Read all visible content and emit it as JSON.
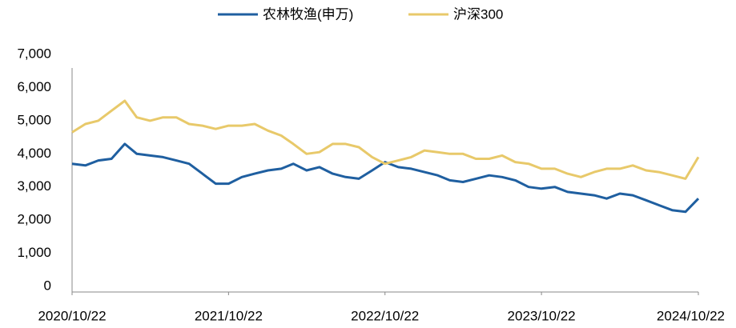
{
  "chart_data": {
    "type": "line",
    "x": [
      "2020/10/22",
      "2020/11/22",
      "2020/12/22",
      "2021/01/22",
      "2021/02/22",
      "2021/03/22",
      "2021/04/22",
      "2021/05/22",
      "2021/06/22",
      "2021/07/22",
      "2021/08/22",
      "2021/09/22",
      "2021/10/22",
      "2021/11/22",
      "2021/12/22",
      "2022/01/22",
      "2022/02/22",
      "2022/03/22",
      "2022/04/22",
      "2022/05/22",
      "2022/06/22",
      "2022/07/22",
      "2022/08/22",
      "2022/09/22",
      "2022/10/22",
      "2022/11/22",
      "2022/12/22",
      "2023/01/22",
      "2023/02/22",
      "2023/03/22",
      "2023/04/22",
      "2023/05/22",
      "2023/06/22",
      "2023/07/22",
      "2023/08/22",
      "2023/09/22",
      "2023/10/22",
      "2023/11/22",
      "2023/12/22",
      "2024/01/22",
      "2024/02/22",
      "2024/03/22",
      "2024/04/22",
      "2024/05/22",
      "2024/06/22",
      "2024/07/22",
      "2024/08/22",
      "2024/09/22",
      "2024/10/22"
    ],
    "series": [
      {
        "name": "农林牧渔(申万)",
        "color": "#1f5fa0",
        "values": [
          3700,
          3650,
          3800,
          3850,
          4300,
          4000,
          3950,
          3900,
          3800,
          3700,
          3400,
          3100,
          3100,
          3300,
          3400,
          3500,
          3550,
          3700,
          3500,
          3600,
          3400,
          3300,
          3250,
          3500,
          3750,
          3600,
          3550,
          3450,
          3350,
          3200,
          3150,
          3250,
          3350,
          3300,
          3200,
          3000,
          2950,
          3000,
          2850,
          2800,
          2750,
          2650,
          2800,
          2750,
          2600,
          2450,
          2300,
          2250,
          2650
        ]
      },
      {
        "name": "沪深300",
        "color": "#e8c96a",
        "values": [
          4650,
          4900,
          5000,
          5300,
          5600,
          5100,
          5000,
          5100,
          5100,
          4900,
          4850,
          4750,
          4850,
          4850,
          4900,
          4700,
          4550,
          4300,
          4000,
          4050,
          4300,
          4300,
          4200,
          3900,
          3700,
          3800,
          3900,
          4100,
          4050,
          4000,
          4000,
          3850,
          3850,
          3950,
          3750,
          3700,
          3550,
          3550,
          3400,
          3300,
          3450,
          3550,
          3550,
          3650,
          3500,
          3450,
          3350,
          3250,
          3900
        ]
      }
    ],
    "ylim": [
      0,
      7000
    ],
    "yticks": [
      0,
      {
        "value": 1000,
        "label": "1,000"
      },
      {
        "value": 2000,
        "label": "2,000"
      },
      {
        "value": 3000,
        "label": "3,000"
      },
      {
        "value": 4000,
        "label": "4,000"
      },
      {
        "value": 5000,
        "label": "5,000"
      },
      {
        "value": 6000,
        "label": "6,000"
      },
      {
        "value": 7000,
        "label": "7,000"
      }
    ],
    "xticks": [
      "2020/10/22",
      "2021/10/22",
      "2022/10/22",
      "2023/10/22",
      "2024/10/22"
    ],
    "legend": "top"
  }
}
